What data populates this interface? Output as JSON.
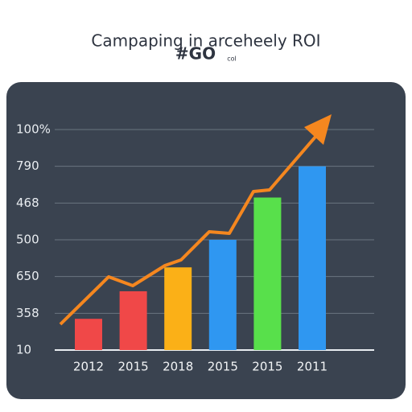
{
  "chart_data": {
    "type": "bar",
    "title": "Campaping in arceheely ROI",
    "subtitle": "#GO",
    "annotation": "col",
    "categories": [
      "2012",
      "2015",
      "2018",
      "2015",
      "2015",
      "2011"
    ],
    "values": [
      0.85,
      1.6,
      2.25,
      3.0,
      4.15,
      5.0
    ],
    "colors": [
      "#f04848",
      "#f04848",
      "#fbb017",
      "#2f97f1",
      "#58e04b",
      "#2f97f1"
    ],
    "ylim": [
      0,
      6
    ],
    "yticks": [
      {
        "value": 0,
        "label": "10"
      },
      {
        "value": 1,
        "label": "358"
      },
      {
        "value": 2,
        "label": "650"
      },
      {
        "value": 3,
        "label": "500"
      },
      {
        "value": 4,
        "label": "468"
      },
      {
        "value": 5,
        "label": "790"
      },
      {
        "value": 6,
        "label": "100%"
      }
    ],
    "grid": true
  }
}
